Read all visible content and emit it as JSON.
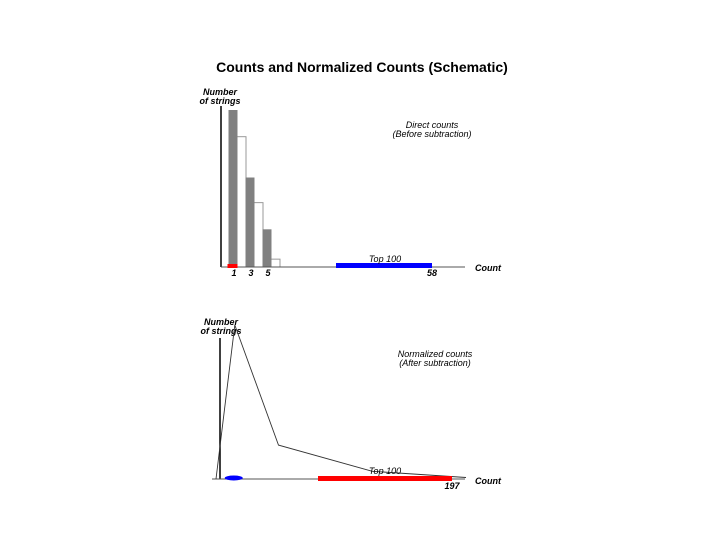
{
  "title": "Counts and Normalized Counts (Schematic)",
  "colors": {
    "gray": "#808080",
    "red": "#ff0000",
    "blue": "#0000ff",
    "black": "#000000"
  },
  "chart_data": [
    {
      "type": "bar",
      "ylabel_line1": "Number",
      "ylabel_line2": "of strings",
      "xlabel": "Count",
      "annotation_line1": "Direct counts",
      "annotation_line2": "(Before subtraction)",
      "tick_labels": [
        {
          "label": "1",
          "value": 1
        },
        {
          "label": "3",
          "value": 3
        },
        {
          "label": "5",
          "value": 5
        },
        {
          "label": "58",
          "value": 58
        }
      ],
      "filled_bars": [
        {
          "count": 1,
          "height": 1.0
        },
        {
          "count": 3,
          "height": 0.57
        },
        {
          "count": 5,
          "height": 0.24
        }
      ],
      "outline_bars": [
        {
          "count": 2,
          "height": 0.83
        },
        {
          "count": 4,
          "height": 0.41
        },
        {
          "count": 6,
          "height": 0.05
        }
      ],
      "red_segment": {
        "start": 0.6,
        "end": 1.4
      },
      "top_band": {
        "label": "Top 100",
        "start": 25,
        "end": 58
      }
    },
    {
      "type": "line",
      "ylabel_line1": "Number",
      "ylabel_line2": "of strings",
      "xlabel": "Count",
      "annotation_line1": "Normalized counts",
      "annotation_line2": "(After subtraction)",
      "tick_labels": [
        {
          "label": "197",
          "value": 197
        }
      ],
      "curve": [
        {
          "x": 0,
          "y": 0.0
        },
        {
          "x": 3,
          "y": 1.0
        },
        {
          "x": 10,
          "y": 0.22
        },
        {
          "x": 25,
          "y": 0.05
        },
        {
          "x": 40,
          "y": 0.01
        }
      ],
      "blue_blob": {
        "start": 0,
        "end": 6
      },
      "top_band": {
        "label": "Top 100",
        "start": 52,
        "end": 197
      }
    }
  ]
}
